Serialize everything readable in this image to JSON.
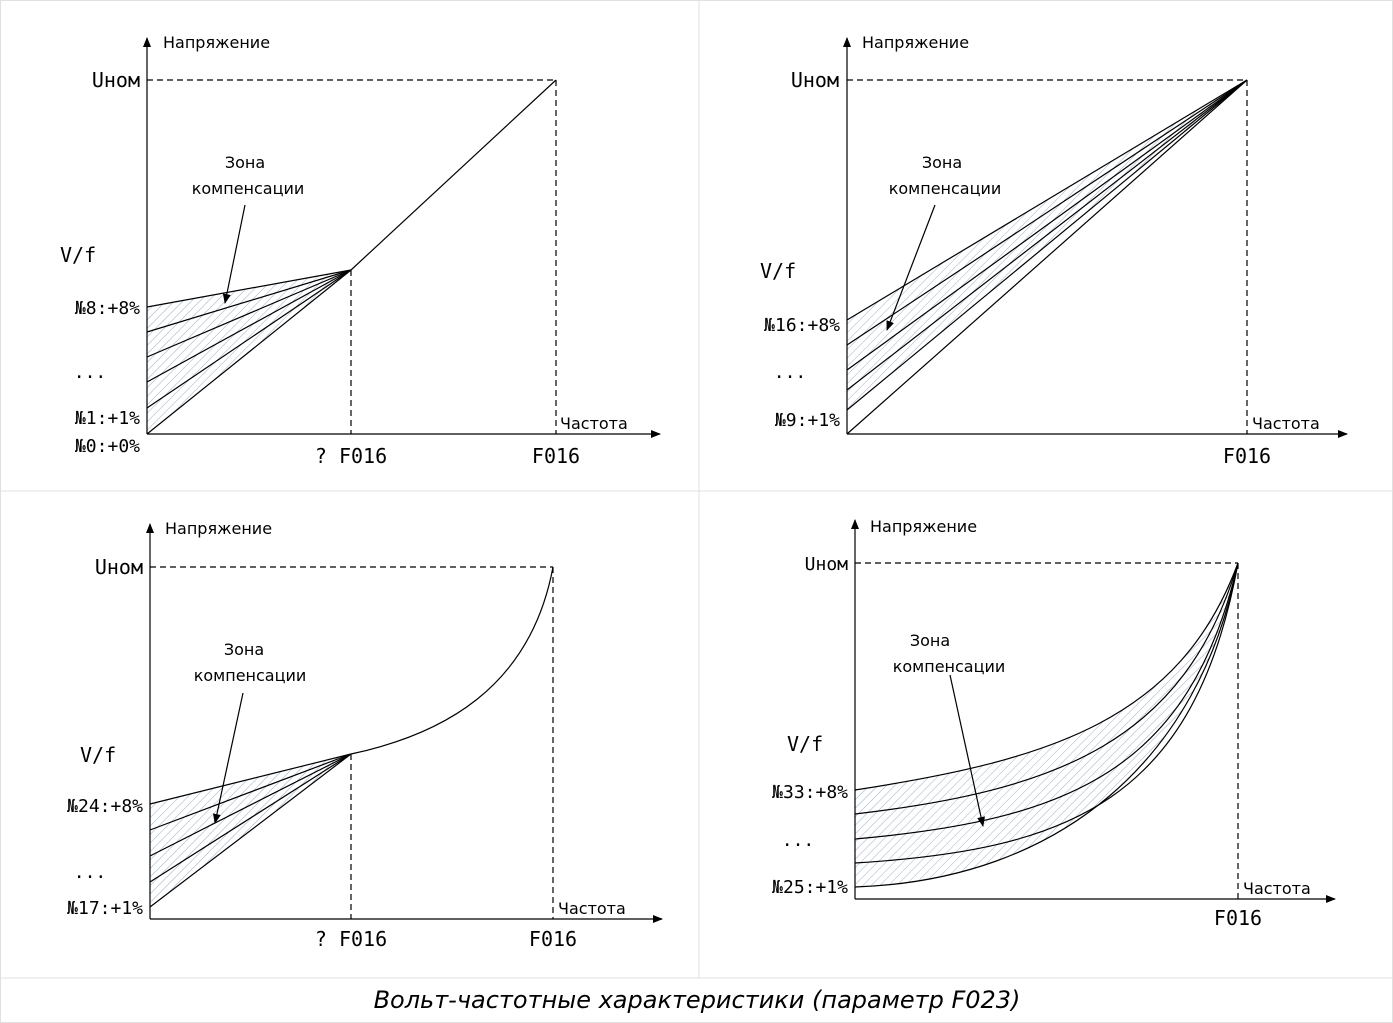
{
  "caption": "Вольт-частотные характеристики (параметр F023)",
  "panels": [
    {
      "y_axis_label": "Напряжение",
      "x_axis_label": "Частота",
      "u_nom": "Uном",
      "zone_line1": "Зона",
      "zone_line2": "компенсации",
      "vf_label": "V/f",
      "curve_labels": [
        "№8:+8%",
        "...",
        "№1:+1%",
        "№0:+0%"
      ],
      "x_tick_labels": [
        "? F016",
        "F016"
      ]
    },
    {
      "y_axis_label": "Напряжение",
      "x_axis_label": "Частота",
      "u_nom": "Uном",
      "zone_line1": "Зона",
      "zone_line2": "компенсации",
      "vf_label": "V/f",
      "curve_labels": [
        "№16:+8%",
        "...",
        "№9:+1%"
      ],
      "x_tick_labels": [
        "F016"
      ]
    },
    {
      "y_axis_label": "Напряжение",
      "x_axis_label": "Частота",
      "u_nom": "Uном",
      "zone_line1": "Зона",
      "zone_line2": "компенсации",
      "vf_label": "V/f",
      "curve_labels": [
        "№24:+8%",
        "...",
        "№17:+1%"
      ],
      "x_tick_labels": [
        "? F016",
        "F016"
      ]
    },
    {
      "y_axis_label": "Напряжение",
      "x_axis_label": "Частота",
      "u_nom": "Uном",
      "zone_line1": "Зона",
      "zone_line2": "компенсации",
      "vf_label": "V/f",
      "curve_labels": [
        "№33:+8%",
        "...",
        "№25:+1%"
      ],
      "x_tick_labels": [
        "F016"
      ]
    }
  ]
}
